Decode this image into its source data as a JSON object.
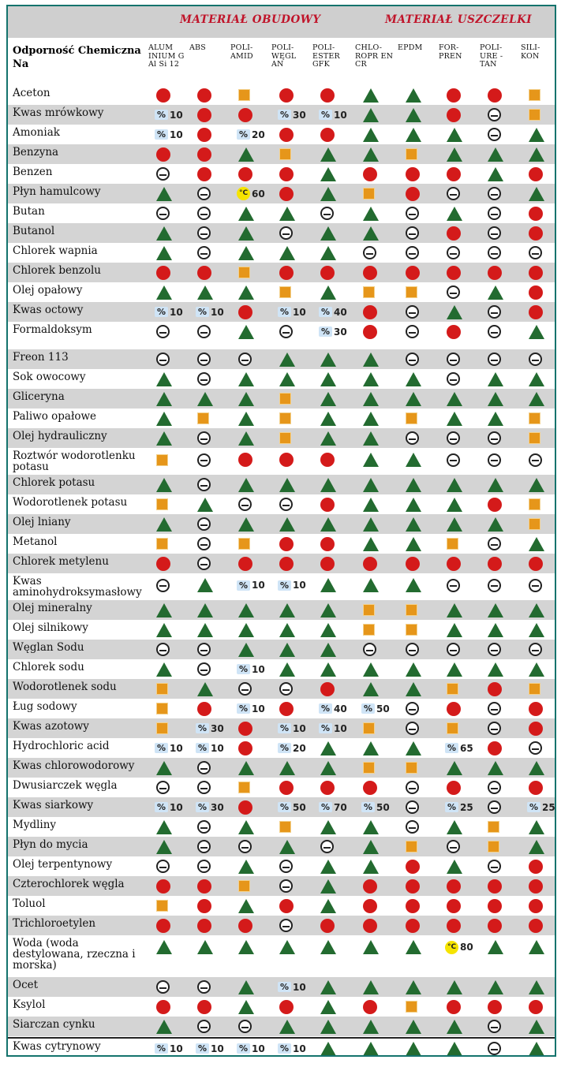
{
  "groups": {
    "housing": "MATERIAŁ OBUDOWY",
    "seal": "MATERIAŁ USZCZELKI"
  },
  "chem_header": "Odporność Chemiczna Na",
  "columns": [
    "ALUM INIUM G Al Si 12",
    "ABS",
    "POLI- AMID",
    "POLI- WĘGL AN",
    "POLI- ESTER GFK",
    "CHLO- ROPR EN CR",
    "EPDM",
    "FOR- PREN",
    "POLI- URE - TAN",
    "SILI- KON"
  ],
  "legend_symbols": {
    "T": "green triangle",
    "R": "red circle",
    "O": "orange square",
    "D": "circled minus",
    "%n": "percent value",
    "Cn": "max temperature"
  },
  "rows": [
    {
      "name": "Aceton",
      "cells": [
        "R",
        "R",
        "O",
        "R",
        "R",
        "T",
        "T",
        "R",
        "R",
        "O"
      ]
    },
    {
      "name": "Kwas mrówkowy",
      "cells": [
        "%10",
        "R",
        "R",
        "%30",
        "%10",
        "T",
        "T",
        "R",
        "D",
        "O"
      ]
    },
    {
      "name": "Amoniak",
      "cells": [
        "%10",
        "R",
        "%20",
        "R",
        "R",
        "T",
        "T",
        "T",
        "D",
        "T"
      ]
    },
    {
      "name": "Benzyna",
      "cells": [
        "R",
        "R",
        "T",
        "O",
        "T",
        "T",
        "O",
        "T",
        "T",
        "T"
      ]
    },
    {
      "name": "Benzen",
      "cells": [
        "D",
        "R",
        "R",
        "R",
        "T",
        "R",
        "R",
        "R",
        "T",
        "R"
      ]
    },
    {
      "name": "Płyn hamulcowy",
      "cells": [
        "T",
        "D",
        "C60",
        "R",
        "T",
        "O",
        "R",
        "D",
        "D",
        "T"
      ]
    },
    {
      "name": "Butan",
      "cells": [
        "D",
        "D",
        "T",
        "T",
        "D",
        "T",
        "D",
        "T",
        "D",
        "R"
      ]
    },
    {
      "name": "Butanol",
      "cells": [
        "T",
        "D",
        "T",
        "D",
        "T",
        "T",
        "D",
        "R",
        "D",
        "R"
      ]
    },
    {
      "name": "Chlorek wapnia",
      "cells": [
        "T",
        "D",
        "T",
        "T",
        "T",
        "D",
        "D",
        "D",
        "D",
        "D"
      ]
    },
    {
      "name": "Chlorek benzolu",
      "cells": [
        "R",
        "R",
        "O",
        "R",
        "R",
        "R",
        "R",
        "R",
        "R",
        "R"
      ]
    },
    {
      "name": "Olej opałowy",
      "cells": [
        "T",
        "T",
        "T",
        "O",
        "T",
        "O",
        "O",
        "D",
        "T",
        "R"
      ]
    },
    {
      "name": "Kwas octowy",
      "cells": [
        "%10",
        "%10",
        "R",
        "%10",
        "%40",
        "R",
        "D",
        "T",
        "D",
        "R"
      ]
    },
    {
      "name": "Formaldoksym",
      "cells": [
        "D",
        "D",
        "T",
        "D",
        "%30",
        "R",
        "D",
        "R",
        "D",
        "T"
      ]
    },
    {
      "name": "Freon 113",
      "cells": [
        "D",
        "D",
        "D",
        "T",
        "T",
        "T",
        "D",
        "D",
        "D",
        "D"
      ]
    },
    {
      "name": "Sok owocowy",
      "cells": [
        "T",
        "D",
        "T",
        "T",
        "T",
        "T",
        "T",
        "D",
        "T",
        "T"
      ]
    },
    {
      "name": "Gliceryna",
      "cells": [
        "T",
        "T",
        "T",
        "O",
        "T",
        "T",
        "T",
        "T",
        "T",
        "T"
      ]
    },
    {
      "name": "Paliwo opałowe",
      "cells": [
        "T",
        "O",
        "T",
        "O",
        "T",
        "T",
        "O",
        "T",
        "T",
        "O"
      ]
    },
    {
      "name": "Olej hydrauliczny",
      "cells": [
        "T",
        "D",
        "T",
        "O",
        "T",
        "T",
        "D",
        "D",
        "D",
        "O"
      ]
    },
    {
      "name": "Roztwór wodorotlenku potasu",
      "cells": [
        "O",
        "D",
        "R",
        "R",
        "R",
        "T",
        "T",
        "D",
        "D",
        "D"
      ]
    },
    {
      "name": "Chlorek potasu",
      "cells": [
        "T",
        "D",
        "T",
        "T",
        "T",
        "T",
        "T",
        "T",
        "T",
        "T"
      ]
    },
    {
      "name": "Wodorotlenek potasu",
      "cells": [
        "O",
        "T",
        "D",
        "D",
        "R",
        "T",
        "T",
        "T",
        "R",
        "O"
      ]
    },
    {
      "name": "Olej lniany",
      "cells": [
        "T",
        "D",
        "T",
        "T",
        "T",
        "T",
        "T",
        "T",
        "T",
        "O"
      ]
    },
    {
      "name": "Metanol",
      "cells": [
        "O",
        "D",
        "O",
        "R",
        "R",
        "T",
        "T",
        "O",
        "D",
        "T"
      ]
    },
    {
      "name": "Chlorek metylenu",
      "cells": [
        "R",
        "D",
        "R",
        "R",
        "R",
        "R",
        "R",
        "R",
        "R",
        "R"
      ]
    },
    {
      "name": "Kwas aminohydroksymasłowy",
      "cells": [
        "D",
        "T",
        "%10",
        "%10",
        "T",
        "T",
        "T",
        "D",
        "D",
        "D"
      ]
    },
    {
      "name": "Olej mineralny",
      "cells": [
        "T",
        "T",
        "T",
        "T",
        "T",
        "O",
        "O",
        "T",
        "T",
        "T"
      ]
    },
    {
      "name": "Olej silnikowy",
      "cells": [
        "T",
        "T",
        "T",
        "T",
        "T",
        "O",
        "O",
        "T",
        "T",
        "T"
      ]
    },
    {
      "name": "Węglan Sodu",
      "cells": [
        "D",
        "D",
        "T",
        "T",
        "T",
        "D",
        "D",
        "D",
        "D",
        "D"
      ]
    },
    {
      "name": "Chlorek sodu",
      "cells": [
        "T",
        "D",
        "%10",
        "T",
        "T",
        "T",
        "T",
        "T",
        "T",
        "T"
      ]
    },
    {
      "name": "Wodorotlenek sodu",
      "cells": [
        "O",
        "T",
        "D",
        "D",
        "R",
        "T",
        "T",
        "O",
        "R",
        "O"
      ]
    },
    {
      "name": "Ług sodowy",
      "cells": [
        "O",
        "R",
        "%10",
        "R",
        "%40",
        "%50",
        "D",
        "R",
        "D",
        "R"
      ]
    },
    {
      "name": "Kwas azotowy",
      "cells": [
        "O",
        "%30",
        "R",
        "%10",
        "%10",
        "O",
        "D",
        "O",
        "D",
        "R"
      ]
    },
    {
      "name": "Hydrochloric acid",
      "cells": [
        "%10",
        "%10",
        "R",
        "%20",
        "T",
        "T",
        "T",
        "%65",
        "R",
        "D"
      ]
    },
    {
      "name": "Kwas chlorowodorowy",
      "cells": [
        "T",
        "D",
        "T",
        "T",
        "T",
        "O",
        "O",
        "T",
        "T",
        "T"
      ]
    },
    {
      "name": "Dwusiarczek węgla",
      "cells": [
        "D",
        "D",
        "O",
        "R",
        "R",
        "R",
        "D",
        "R",
        "D",
        "R"
      ]
    },
    {
      "name": "Kwas siarkowy",
      "cells": [
        "%10",
        "%30",
        "R",
        "%50",
        "%70",
        "%50",
        "D",
        "%25",
        "D",
        "%25"
      ]
    },
    {
      "name": "Mydliny",
      "cells": [
        "T",
        "D",
        "T",
        "O",
        "T",
        "T",
        "D",
        "T",
        "O",
        "T"
      ]
    },
    {
      "name": "Płyn do mycia",
      "cells": [
        "T",
        "D",
        "D",
        "T",
        "D",
        "T",
        "O",
        "D",
        "O",
        "T"
      ]
    },
    {
      "name": "Olej terpentynowy",
      "cells": [
        "D",
        "D",
        "T",
        "D",
        "T",
        "T",
        "R",
        "T",
        "D",
        "R"
      ]
    },
    {
      "name": "Czterochlorek węgla",
      "cells": [
        "R",
        "R",
        "O",
        "D",
        "T",
        "R",
        "R",
        "R",
        "R",
        "R"
      ]
    },
    {
      "name": "Toluol",
      "cells": [
        "O",
        "R",
        "T",
        "R",
        "T",
        "R",
        "R",
        "R",
        "R",
        "R"
      ]
    },
    {
      "name": "Trichloroetylen",
      "cells": [
        "R",
        "R",
        "R",
        "D",
        "R",
        "R",
        "R",
        "R",
        "R",
        "R"
      ]
    },
    {
      "name": "Woda (woda destylowana, rzeczna i morska)",
      "cells": [
        "T",
        "T",
        "T",
        "T",
        "T",
        "T",
        "T",
        "C80",
        "T",
        "T"
      ]
    },
    {
      "name": "Ocet",
      "cells": [
        "D",
        "D",
        "T",
        "%10",
        "T",
        "T",
        "T",
        "T",
        "T",
        "T"
      ]
    },
    {
      "name": "Ksylol",
      "cells": [
        "R",
        "R",
        "T",
        "R",
        "T",
        "R",
        "O",
        "R",
        "R",
        "R"
      ]
    },
    {
      "name": "Siarczan cynku",
      "cells": [
        "T",
        "D",
        "D",
        "T",
        "T",
        "T",
        "T",
        "T",
        "D",
        "T"
      ]
    },
    {
      "name": "Kwas cytrynowy",
      "cells": [
        "%10",
        "%10",
        "%10",
        "%10",
        "T",
        "T",
        "T",
        "T",
        "D",
        "T"
      ]
    }
  ]
}
